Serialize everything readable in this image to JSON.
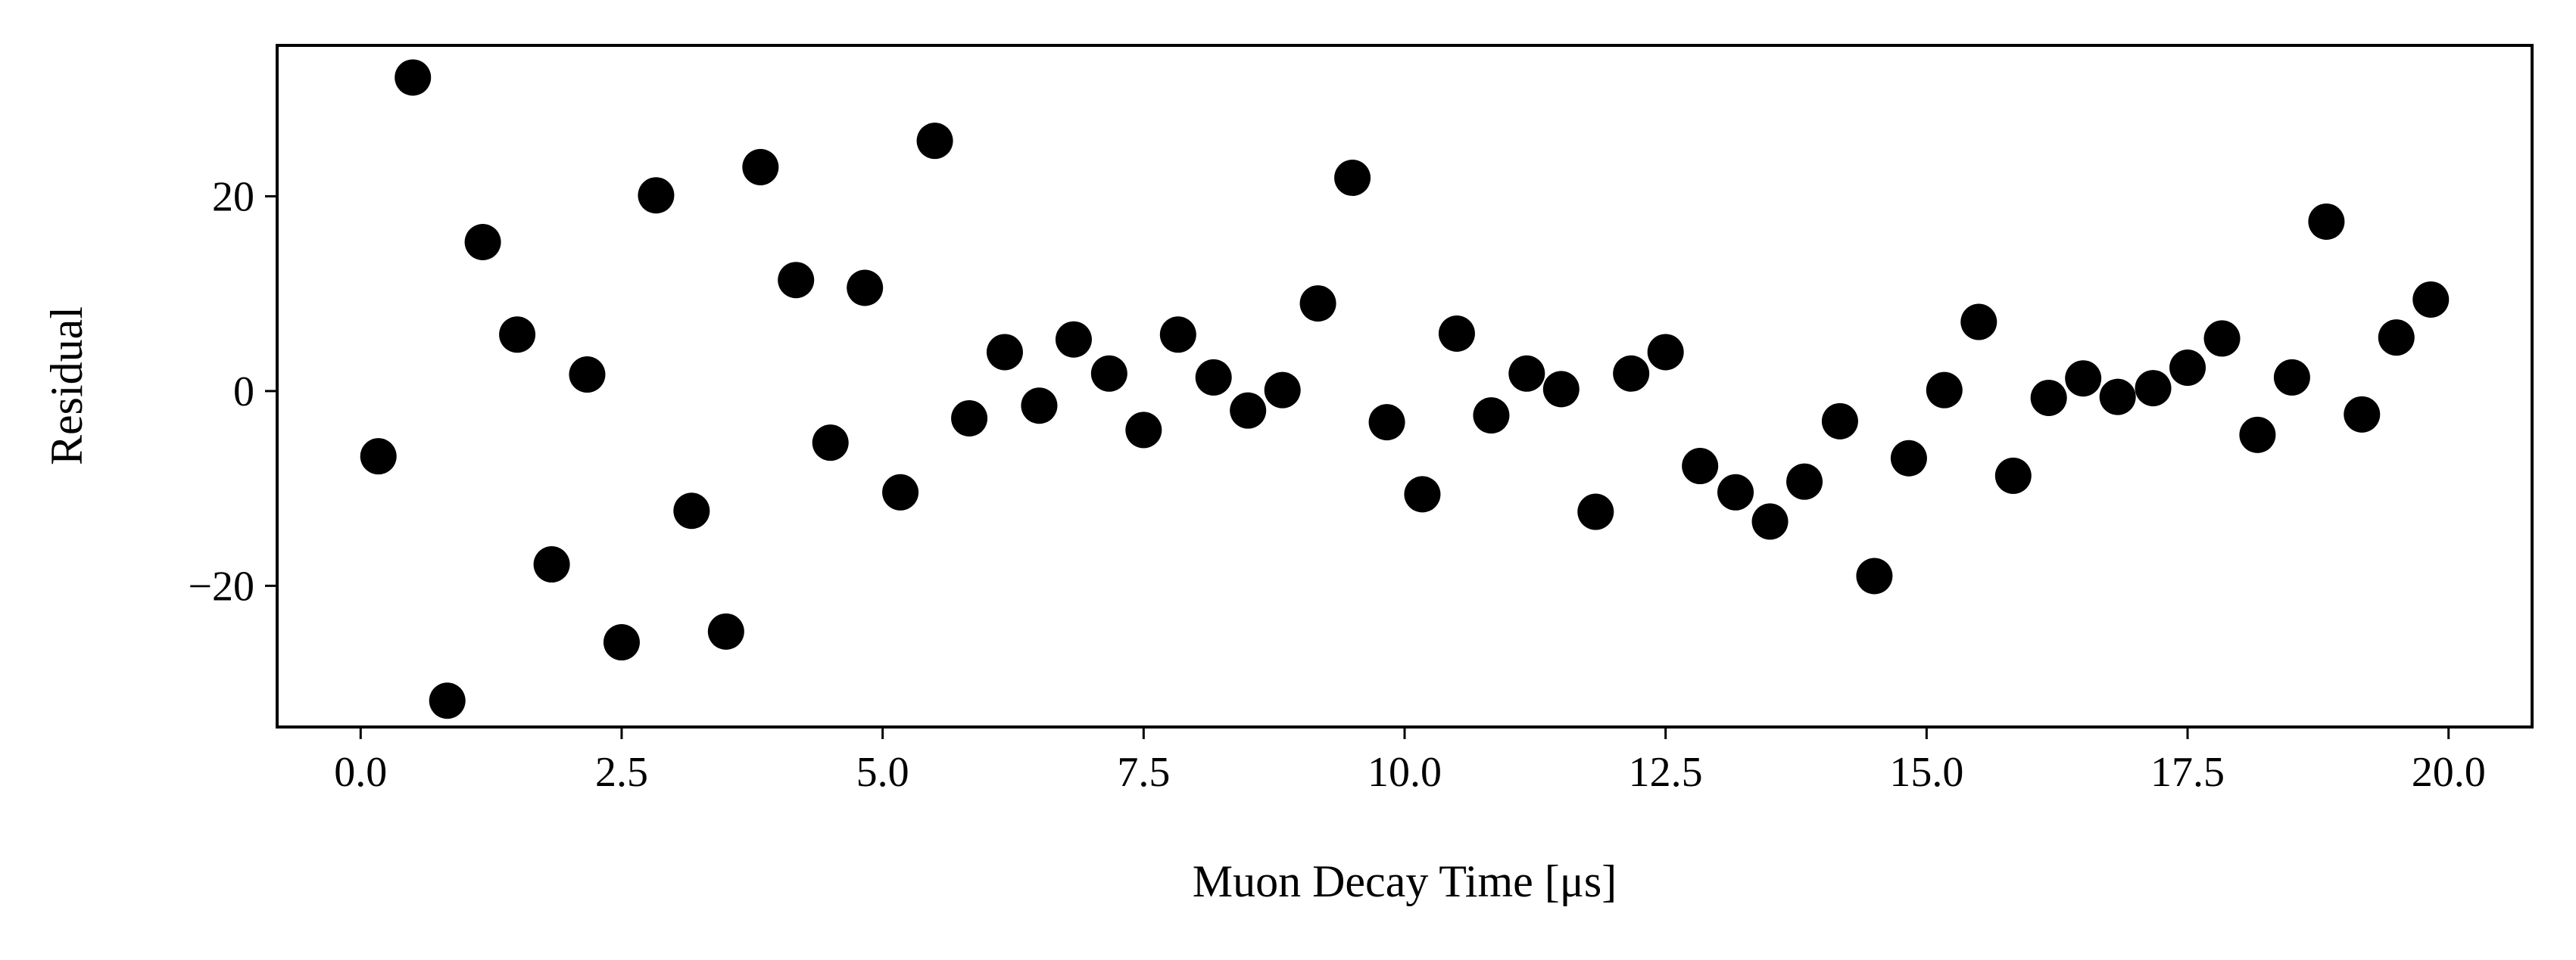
{
  "chart_data": {
    "type": "scatter",
    "title": "",
    "xlabel": "Muon Decay Time [μs]",
    "ylabel": "Residual",
    "xlim": [
      -0.8,
      20.8
    ],
    "ylim": [
      -34.5,
      35.5
    ],
    "xticks": [
      0.0,
      2.5,
      5.0,
      7.5,
      10.0,
      12.5,
      15.0,
      17.5,
      20.0
    ],
    "xtick_labels": [
      "0.0",
      "2.5",
      "5.0",
      "7.5",
      "10.0",
      "12.5",
      "15.0",
      "17.5",
      "20.0"
    ],
    "yticks": [
      -20,
      0,
      20
    ],
    "ytick_labels": [
      "−20",
      "0",
      "20"
    ],
    "grid": false,
    "marker_color": "#000000",
    "series": [
      {
        "x": [
          0.17,
          0.5,
          0.83,
          1.17,
          1.5,
          1.83,
          2.17,
          2.5,
          2.83,
          3.17,
          3.5,
          3.83,
          4.17,
          4.5,
          4.83,
          5.17,
          5.5,
          5.83,
          6.17,
          6.5,
          6.83,
          7.17,
          7.5,
          7.83,
          8.17,
          8.5,
          8.83,
          9.17,
          9.5,
          9.83,
          10.17,
          10.5,
          10.83,
          11.17,
          11.5,
          11.83,
          12.17,
          12.5,
          12.83,
          13.17,
          13.5,
          13.83,
          14.17,
          14.5,
          14.83,
          15.17,
          15.5,
          15.83,
          16.17,
          16.5,
          16.83,
          17.17,
          17.5,
          17.83,
          18.17,
          18.5,
          18.83,
          19.17,
          19.5,
          19.83
        ],
        "y": [
          -6.7,
          32.2,
          -31.8,
          15.3,
          5.8,
          -17.8,
          1.7,
          -25.8,
          20.1,
          -12.3,
          -24.7,
          23.0,
          11.4,
          -5.3,
          10.6,
          -10.4,
          25.7,
          -2.8,
          4.0,
          -1.5,
          5.3,
          1.8,
          -4.0,
          5.8,
          1.4,
          -2.0,
          0.1,
          9.0,
          21.9,
          -3.2,
          -10.6,
          5.9,
          -2.5,
          1.8,
          0.2,
          -12.4,
          1.8,
          4.0,
          -7.7,
          -10.4,
          -13.4,
          -9.3,
          -3.1,
          -19.0,
          -6.9,
          0.1,
          7.1,
          -8.7,
          -0.7,
          1.3,
          -0.6,
          0.3,
          2.4,
          5.4,
          -4.5,
          1.4,
          17.4,
          -2.4,
          5.5,
          9.4
        ]
      }
    ]
  }
}
